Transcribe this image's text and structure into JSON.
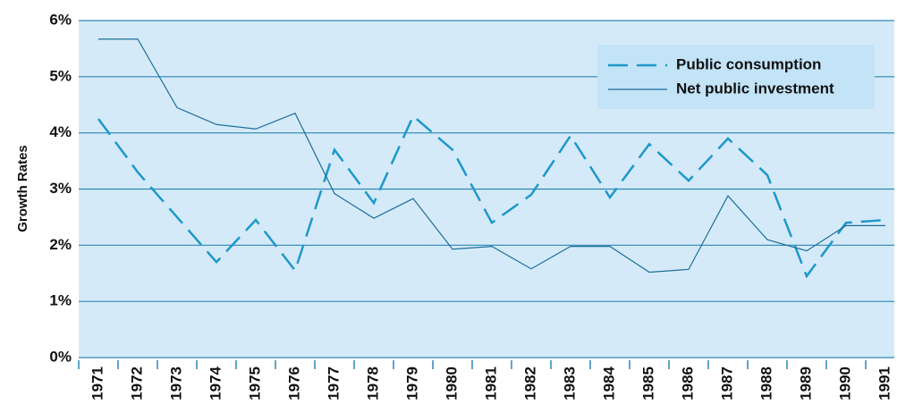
{
  "chart_data": {
    "type": "line",
    "y_label": "Growth Rates",
    "categories": [
      "1971",
      "1972",
      "1973",
      "1974",
      "1975",
      "1976",
      "1977",
      "1978",
      "1979",
      "1980",
      "1981",
      "1982",
      "1983",
      "1984",
      "1985",
      "1986",
      "1987",
      "1988",
      "1989",
      "1990",
      "1991"
    ],
    "series": [
      {
        "name": "Public consumption",
        "color": "#1c98cc",
        "style": "dashed",
        "values": [
          4.25,
          3.3,
          2.5,
          1.7,
          2.45,
          1.55,
          3.7,
          2.75,
          4.3,
          3.7,
          2.4,
          2.9,
          3.95,
          2.85,
          3.8,
          3.15,
          3.9,
          3.25,
          1.45,
          2.4,
          2.45
        ]
      },
      {
        "name": "Net public investment",
        "color": "#1b6f9c",
        "style": "solid",
        "values": [
          5.67,
          5.67,
          4.45,
          4.15,
          4.07,
          4.35,
          2.92,
          2.48,
          2.83,
          1.93,
          1.98,
          1.58,
          1.98,
          1.98,
          1.52,
          1.57,
          2.88,
          2.1,
          1.9,
          2.35,
          2.35
        ]
      }
    ],
    "ylim": [
      0,
      6
    ],
    "yticks": [
      {
        "value": 0,
        "label": "0%"
      },
      {
        "value": 1,
        "label": "1%"
      },
      {
        "value": 2,
        "label": "2%"
      },
      {
        "value": 3,
        "label": "3%"
      },
      {
        "value": 4,
        "label": "4%"
      },
      {
        "value": 5,
        "label": "5%"
      },
      {
        "value": 6,
        "label": "6%"
      }
    ],
    "grid": true,
    "legend": "upper right",
    "background": "#d5eaf8"
  }
}
